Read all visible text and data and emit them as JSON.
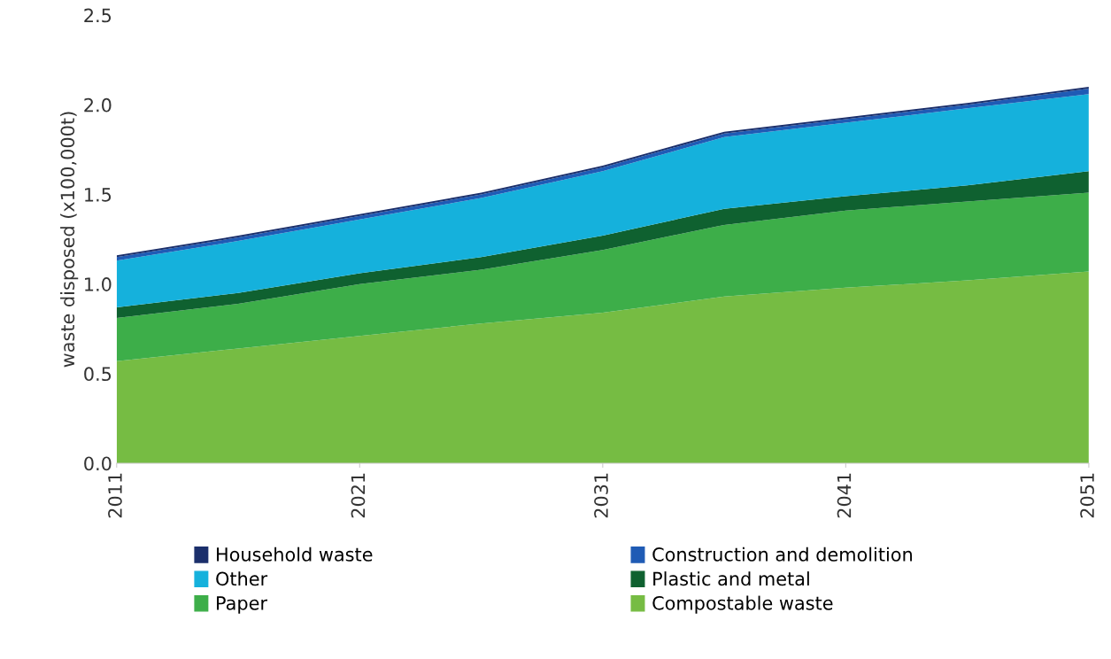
{
  "chart_data": {
    "type": "area",
    "stacked": true,
    "ylabel": "waste disposed (x100,000t)",
    "x": [
      2011,
      2016,
      2021,
      2026,
      2031,
      2036,
      2041,
      2046,
      2051
    ],
    "xlim": [
      2011,
      2051
    ],
    "xticks": [
      2011,
      2021,
      2031,
      2041,
      2051
    ],
    "ylim": [
      0,
      2.5
    ],
    "yticks": [
      {
        "value": 0,
        "label": "0.0"
      },
      {
        "value": 0.5,
        "label": "0.5"
      },
      {
        "value": 1,
        "label": "1.0"
      },
      {
        "value": 1.5,
        "label": "1.5"
      },
      {
        "value": 2,
        "label": "2.0"
      },
      {
        "value": 2.5,
        "label": "2.5"
      }
    ],
    "grid": false,
    "legend": "bottom",
    "series": [
      {
        "name": "Compostable waste",
        "color": "#76bc43",
        "values": [
          0.57,
          0.64,
          0.71,
          0.78,
          0.84,
          0.93,
          0.98,
          1.02,
          1.07
        ]
      },
      {
        "name": "Paper",
        "color": "#3dae49",
        "values": [
          0.24,
          0.25,
          0.29,
          0.3,
          0.35,
          0.4,
          0.43,
          0.44,
          0.44
        ]
      },
      {
        "name": "Plastic and metal",
        "color": "#0f6130",
        "values": [
          0.06,
          0.06,
          0.06,
          0.07,
          0.08,
          0.09,
          0.08,
          0.09,
          0.12
        ]
      },
      {
        "name": "Other",
        "color": "#15b1dc",
        "values": [
          0.26,
          0.29,
          0.3,
          0.33,
          0.36,
          0.4,
          0.41,
          0.43,
          0.43
        ]
      },
      {
        "name": "Construction and demolition",
        "color": "#1f5bb5",
        "values": [
          0.02,
          0.02,
          0.02,
          0.02,
          0.02,
          0.02,
          0.02,
          0.02,
          0.03
        ]
      },
      {
        "name": "Household waste",
        "color": "#1b2f6b",
        "values": [
          0.01,
          0.01,
          0.01,
          0.01,
          0.01,
          0.01,
          0.01,
          0.01,
          0.01
        ]
      }
    ]
  }
}
